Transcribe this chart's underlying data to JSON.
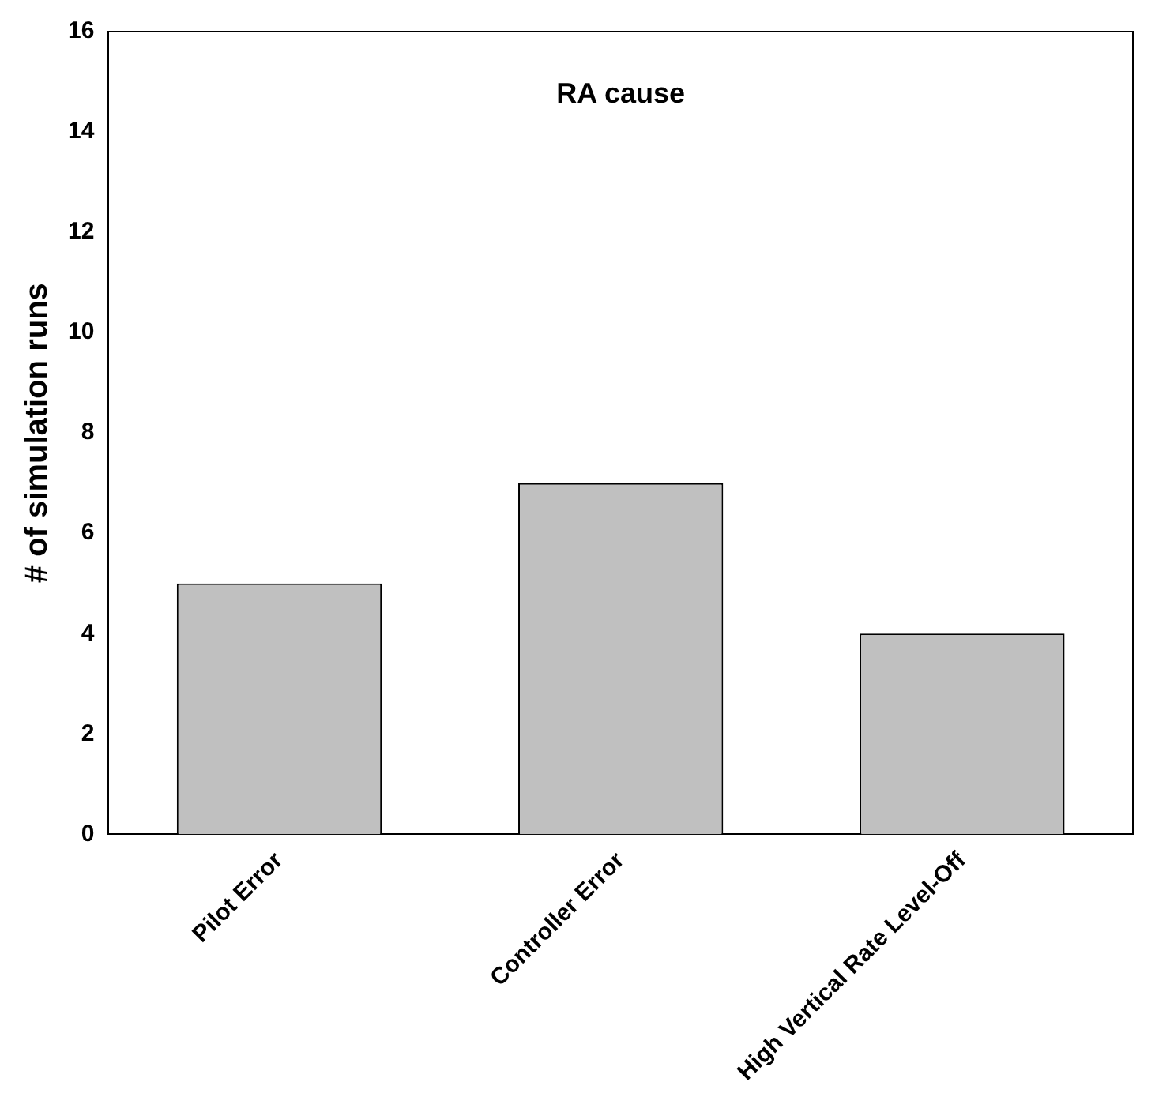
{
  "chart_data": {
    "type": "bar",
    "title": "RA cause",
    "ylabel": "# of simulation runs",
    "categories": [
      "Pilot Error",
      "Controller Error",
      "High Vertical Rate Level-Off"
    ],
    "values": [
      5,
      7,
      4
    ],
    "color": "#c0c0c0",
    "ylim": [
      0,
      16
    ],
    "yticks": [
      0,
      2,
      4,
      6,
      8,
      10,
      12,
      14,
      16
    ],
    "grid": false,
    "legend": false
  }
}
